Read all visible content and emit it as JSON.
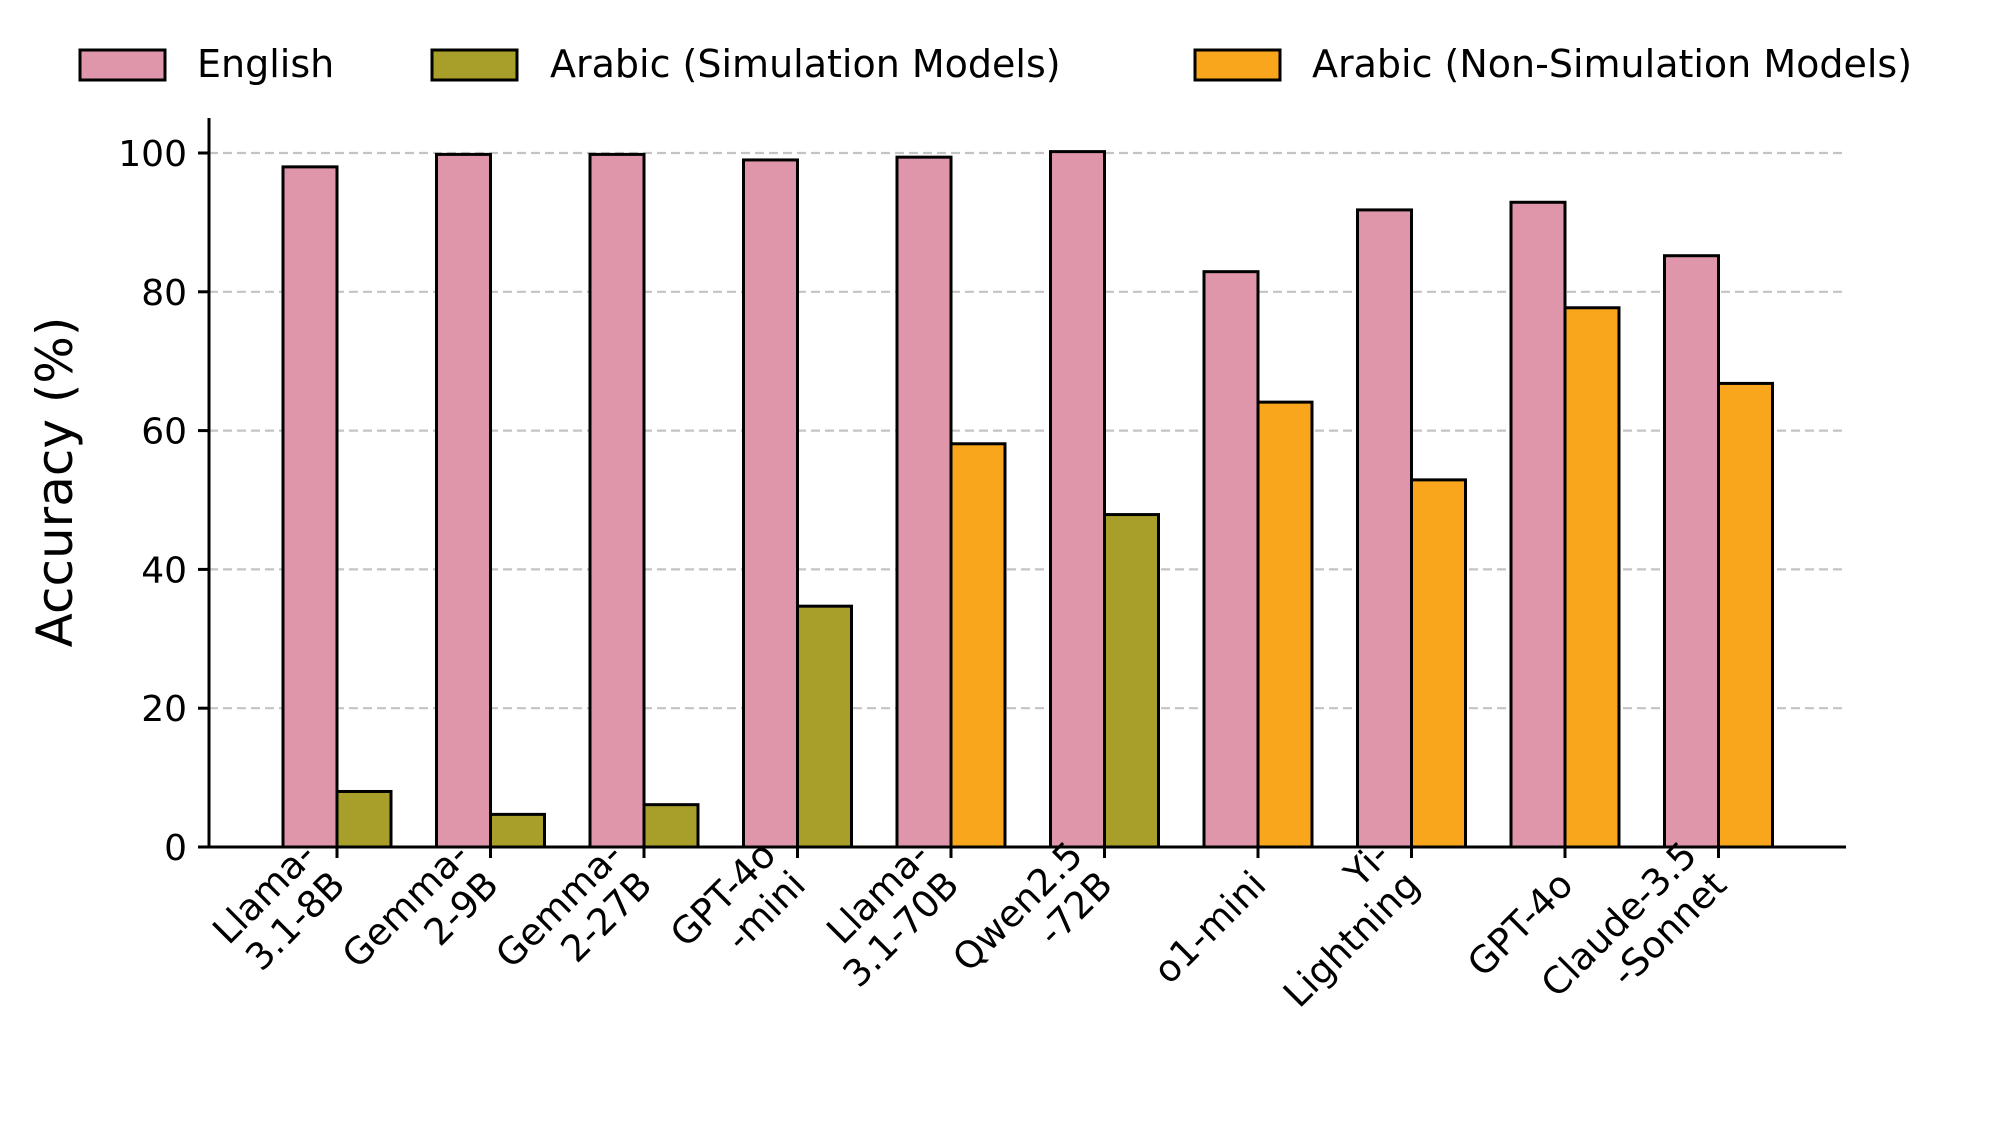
{
  "chart_data": {
    "type": "bar",
    "title": "",
    "xlabel": "",
    "ylabel": "Accuracy (%)",
    "ylim": [
      0,
      105
    ],
    "yticks": [
      0,
      20,
      40,
      60,
      80,
      100
    ],
    "grid": "horizontal dashed",
    "legend_position": "top",
    "legend": [
      {
        "label": "English",
        "color": "#e096aa"
      },
      {
        "label": "Arabic (Simulation Models)",
        "color": "#a89e2a"
      },
      {
        "label": "Arabic (Non-Simulation Models)",
        "color": "#f9a61c"
      }
    ],
    "categories": [
      [
        "Llama-",
        "3.1-8B"
      ],
      [
        "Gemma-",
        "2-9B"
      ],
      [
        "Gemma-",
        "2-27B"
      ],
      [
        "GPT-4o",
        "-mini"
      ],
      [
        "Llama-",
        "3.1-70B"
      ],
      [
        "Qwen2.5",
        "-72B"
      ],
      [
        "o1-mini"
      ],
      [
        "Yi-",
        "Lightning"
      ],
      [
        "GPT-4o"
      ],
      [
        "Claude-3.5",
        "-Sonnet"
      ]
    ],
    "series": [
      {
        "name": "English",
        "values": [
          98.0,
          99.8,
          99.8,
          99.0,
          99.4,
          100.2,
          82.9,
          91.8,
          92.9,
          85.2
        ]
      },
      {
        "name": "Arabic",
        "values": [
          8.0,
          4.7,
          6.1,
          34.7,
          58.1,
          47.9,
          64.1,
          52.9,
          77.7,
          66.8
        ],
        "kind": [
          "sim",
          "sim",
          "sim",
          "sim",
          "nonsim",
          "sim",
          "nonsim",
          "nonsim",
          "nonsim",
          "nonsim"
        ]
      }
    ]
  }
}
